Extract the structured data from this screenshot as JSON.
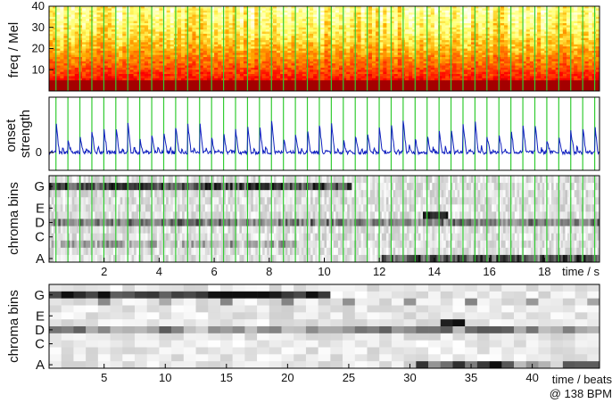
{
  "chart_data": [
    {
      "type": "heatmap",
      "panel": "mel-spectrogram",
      "ylabel": "freq / Mel",
      "yticks": [
        10,
        20,
        30,
        40
      ],
      "ylim": [
        0,
        40
      ],
      "xlim": [
        0,
        20
      ],
      "beat_lines": true,
      "colormap": "hot (dark red = high energy, pale yellow = low)"
    },
    {
      "type": "line",
      "panel": "onset-envelope",
      "ylabel_lines": [
        "onset",
        "strength"
      ],
      "yticks": [
        0
      ],
      "xlim": [
        0,
        20
      ],
      "beat_lines": true,
      "line_color": "#1020c0"
    },
    {
      "type": "heatmap",
      "panel": "chroma-frames",
      "ylabel": "chroma bins",
      "yticks_labels": [
        "G",
        "E",
        "D",
        "C",
        "A"
      ],
      "xticks": [
        2,
        4,
        6,
        8,
        10,
        12,
        14,
        16,
        18
      ],
      "xlabel": "time / s",
      "xlim": [
        0,
        20
      ],
      "beat_lines": true
    },
    {
      "type": "heatmap",
      "panel": "beat-chroma",
      "ylabel": "chroma bins",
      "yticks_labels": [
        "G",
        "E",
        "D",
        "C",
        "A"
      ],
      "xticks": [
        5,
        10,
        15,
        20,
        25,
        30,
        35,
        40
      ],
      "xlabel": "time / beats",
      "xlabel2": "@ 138 BPM",
      "xlim": [
        0.5,
        45.5
      ]
    }
  ],
  "colors": {
    "beat_line": "#33cc33",
    "onset_line": "#1020c0",
    "frame": "#000000"
  }
}
